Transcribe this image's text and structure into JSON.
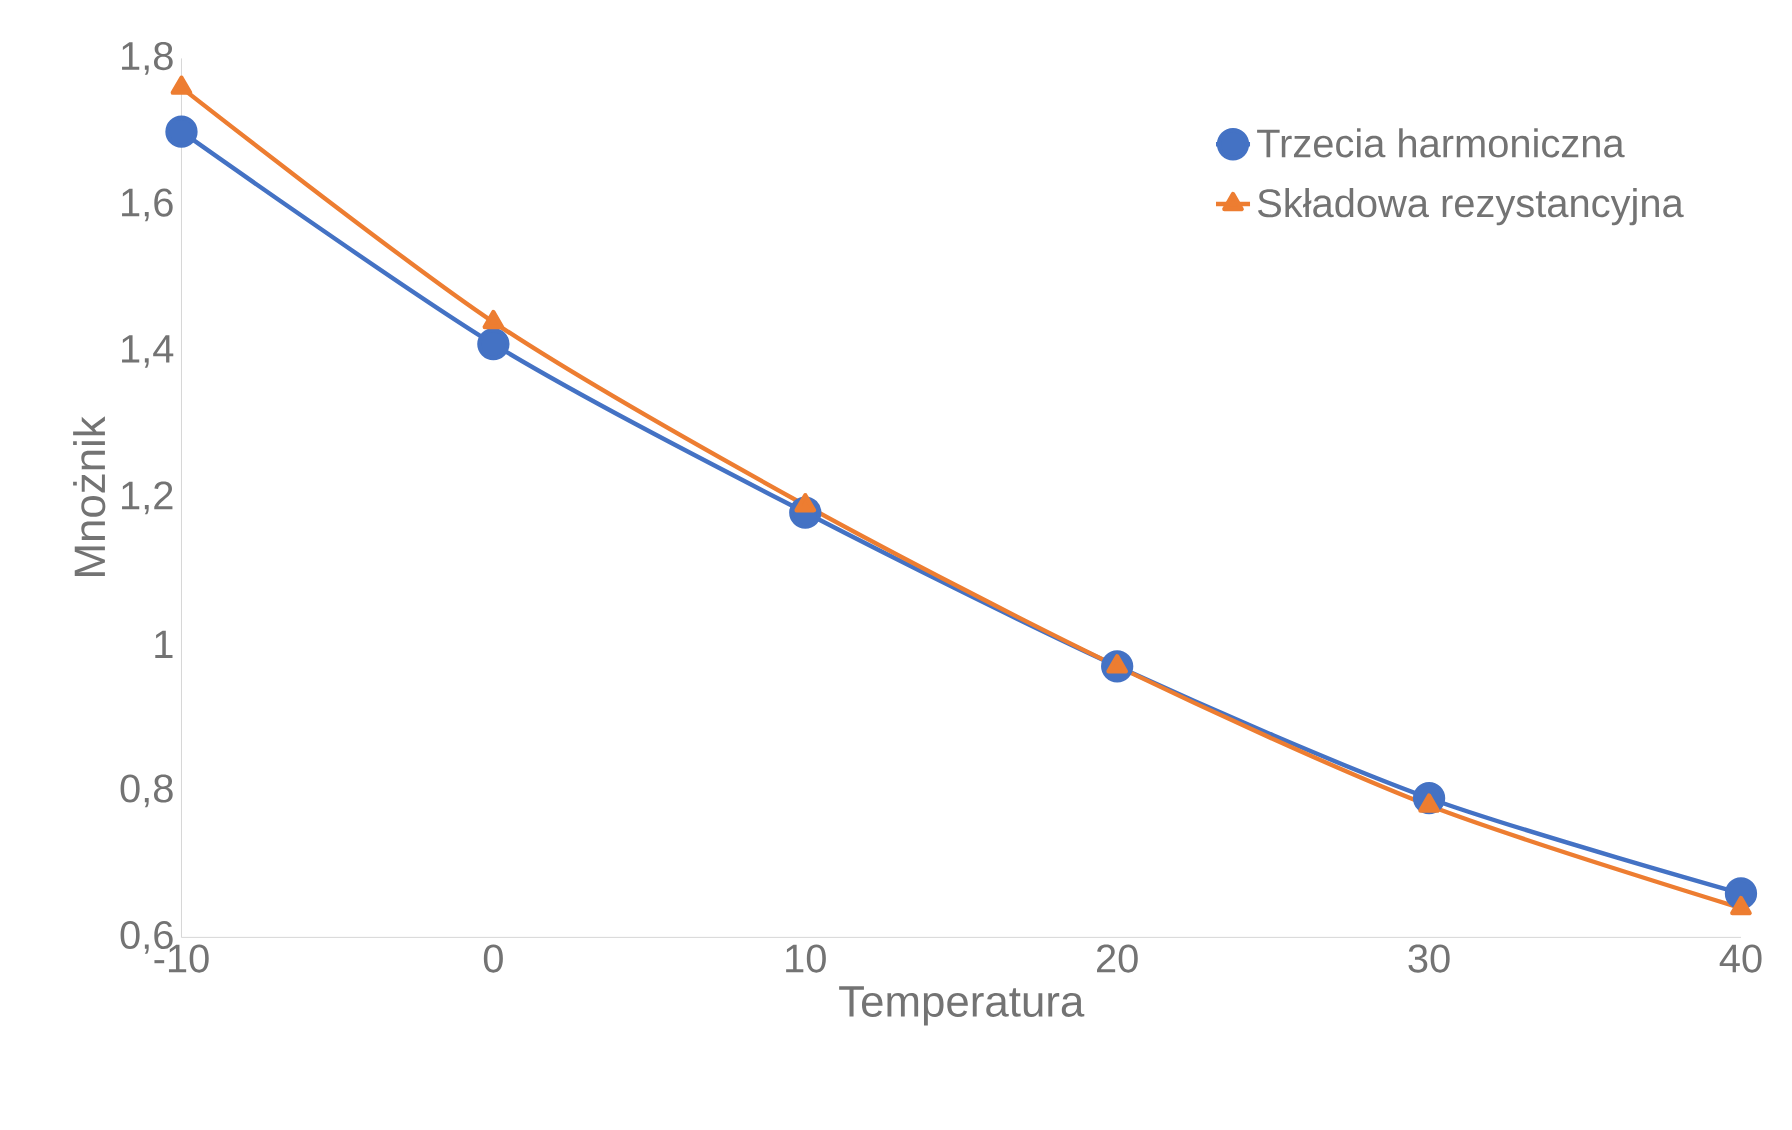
{
  "chart_data": {
    "type": "line",
    "xlabel": "Temperatura",
    "ylabel": "Mnożnik",
    "x": [
      -10,
      0,
      10,
      20,
      30,
      40
    ],
    "series": [
      {
        "name": "Trzecia harmoniczna",
        "color": "#4472c4",
        "marker": "circle",
        "values": [
          1.7,
          1.41,
          1.18,
          0.97,
          0.79,
          0.66
        ]
      },
      {
        "name": "Składowa rezystancyjna",
        "color": "#ed7d31",
        "marker": "triangle",
        "values": [
          1.76,
          1.44,
          1.19,
          0.97,
          0.78,
          0.64
        ]
      }
    ],
    "xlim": [
      -10,
      40
    ],
    "xticks": [
      -10,
      0,
      10,
      20,
      30,
      40
    ],
    "ylim": [
      0.6,
      1.8
    ],
    "yticks": [
      {
        "value": 0.6,
        "label": "0,6"
      },
      {
        "value": 0.8,
        "label": "0,8"
      },
      1,
      {
        "value": 1.2,
        "label": "1,2"
      },
      {
        "value": 1.4,
        "label": "1,4"
      },
      {
        "value": 1.6,
        "label": "1,6"
      },
      {
        "value": 1.8,
        "label": "1,8"
      }
    ],
    "legend": "top right",
    "grid": false,
    "line_style": "solid"
  }
}
